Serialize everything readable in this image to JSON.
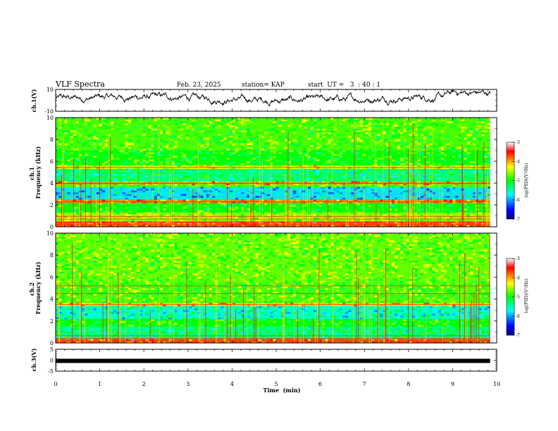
{
  "header": {
    "title": "VLF Spectra",
    "date": "Feb. 23, 2025",
    "station": "station= KAP",
    "start_ut": "start  UT =   3  : 40 : 1"
  },
  "chart_data": [
    {
      "id": "ch1-waveform",
      "type": "line",
      "ylabel": "ch.1(V)",
      "ylim": [
        -10,
        10
      ],
      "y_ticks": [
        "10",
        "-10"
      ],
      "xlim": [
        0,
        10
      ]
    },
    {
      "id": "ch1-spectrogram",
      "type": "heatmap",
      "ylabel": "ch.1\nFrequency (kHz)",
      "ylabel_lines": [
        "ch.1",
        "Frequency (kHz)"
      ],
      "ylim": [
        0,
        10
      ],
      "y_ticks": [
        "0",
        "2",
        "4",
        "6",
        "8",
        "10"
      ],
      "xlim": [
        0,
        9.85
      ],
      "colorbar": {
        "label": "log(PSD)(V²/Hz)",
        "range": [
          -7,
          -3
        ],
        "ticks": [
          "-3",
          "-4",
          "-5",
          "-6",
          "-7"
        ]
      }
    },
    {
      "id": "ch2-spectrogram",
      "type": "heatmap",
      "ylabel": "ch.2\nFrequency (kHz)",
      "ylabel_lines": [
        "ch.2",
        "Frequency (kHz)"
      ],
      "ylim": [
        0,
        10
      ],
      "y_ticks": [
        "0",
        "2",
        "4",
        "6",
        "8",
        "10"
      ],
      "xlim": [
        0,
        9.85
      ],
      "colorbar": {
        "label": "log(PSD)(V²/Hz)",
        "range": [
          -7,
          -3
        ],
        "ticks": [
          "-3",
          "-4",
          "-5",
          "-6",
          "-7"
        ]
      }
    },
    {
      "id": "ch3-waveform",
      "type": "line",
      "ylabel": "ch.3(V)",
      "ylim": [
        -5,
        5
      ],
      "y_ticks": [
        "5",
        "0",
        "-5"
      ],
      "xlim": [
        0,
        9.85
      ],
      "y_value": -0.3
    }
  ],
  "x_axis": {
    "label": "Time  (min)",
    "ticks": [
      "0",
      "1",
      "2",
      "3",
      "4",
      "5",
      "6",
      "7",
      "8",
      "9",
      "10"
    ],
    "range": [
      0,
      10
    ]
  },
  "colors": {
    "axis": "#000000",
    "trace": "#000000",
    "colormap": [
      "#000080",
      "#0000ff",
      "#00ffff",
      "#00ff00",
      "#ffff00",
      "#ff0000",
      "#ffffff"
    ]
  }
}
